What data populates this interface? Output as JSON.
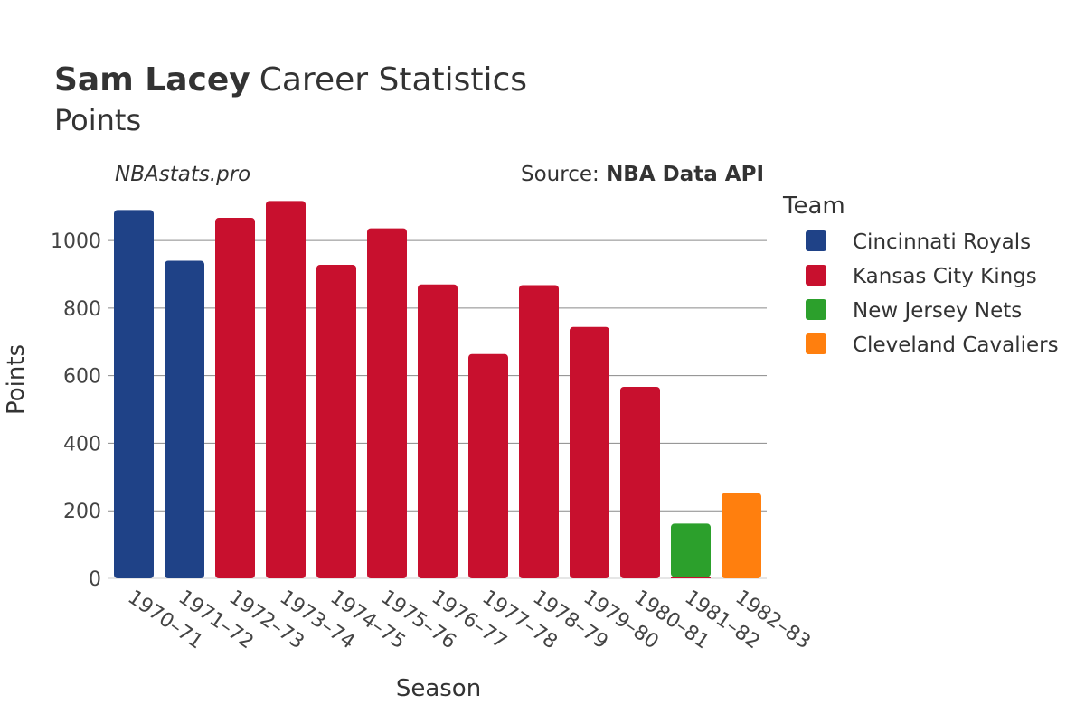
{
  "header": {
    "player": "Sam Lacey",
    "title_rest": "Career Statistics",
    "subtitle": "Points"
  },
  "watermark": "NBAstats.pro",
  "source": {
    "prefix": "Source: ",
    "name": "NBA Data API"
  },
  "legend": {
    "title": "Team",
    "items": [
      {
        "label": "Cincinnati Royals",
        "color": "#1f4287"
      },
      {
        "label": "Kansas City Kings",
        "color": "#c8102e"
      },
      {
        "label": "New Jersey Nets",
        "color": "#2ca02c"
      },
      {
        "label": "Cleveland Cavaliers",
        "color": "#ff7f0e"
      }
    ]
  },
  "chart_data": {
    "type": "bar",
    "title": "Sam Lacey Career Statistics",
    "subtitle": "Points",
    "xlabel": "Season",
    "ylabel": "Points",
    "ylim": [
      0,
      1150
    ],
    "yticks": [
      0,
      200,
      400,
      600,
      800,
      1000
    ],
    "grid": true,
    "legend_position": "right",
    "categories": [
      "1970–71",
      "1971–72",
      "1972–73",
      "1973–74",
      "1974–75",
      "1975–76",
      "1976–77",
      "1977–78",
      "1978–79",
      "1979–80",
      "1980–81",
      "1981–82",
      "1982–83"
    ],
    "bars": [
      {
        "season": "1970–71",
        "team": "Cincinnati Royals",
        "value": 1090
      },
      {
        "season": "1971–72",
        "team": "Cincinnati Royals",
        "value": 940
      },
      {
        "season": "1972–73",
        "team": "Kansas City Kings",
        "value": 1067
      },
      {
        "season": "1973–74",
        "team": "Kansas City Kings",
        "value": 1117
      },
      {
        "season": "1974–75",
        "team": "Kansas City Kings",
        "value": 928
      },
      {
        "season": "1975–76",
        "team": "Kansas City Kings",
        "value": 1036
      },
      {
        "season": "1976–77",
        "team": "Kansas City Kings",
        "value": 870
      },
      {
        "season": "1977–78",
        "team": "Kansas City Kings",
        "value": 664
      },
      {
        "season": "1978–79",
        "team": "Kansas City Kings",
        "value": 868
      },
      {
        "season": "1979–80",
        "team": "Kansas City Kings",
        "value": 744
      },
      {
        "season": "1980–81",
        "team": "Kansas City Kings",
        "value": 567
      },
      {
        "season": "1981–82",
        "team": "Kansas City Kings",
        "value": 4
      },
      {
        "season": "1981–82",
        "team": "New Jersey Nets",
        "value": 158
      },
      {
        "season": "1982–83",
        "team": "Cleveland Cavaliers",
        "value": 253
      }
    ]
  }
}
